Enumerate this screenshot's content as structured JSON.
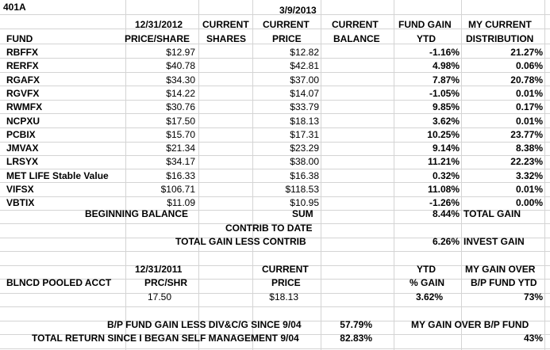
{
  "title": "401A",
  "header": {
    "date1": "12/31/2012",
    "date2": "3/9/2013",
    "current_a": "CURRENT",
    "current_b": "CURRENT",
    "current_c": "CURRENT",
    "fund_gain": "FUND GAIN",
    "my_current": "MY CURRENT",
    "fund": "FUND",
    "price_share": "PRICE/SHARE",
    "shares": "SHARES",
    "price": "PRICE",
    "balance": "BALANCE",
    "ytd": "YTD",
    "distribution": "DISTRIBUTION"
  },
  "rows": [
    {
      "fund": "RBFFX",
      "price_2012": "$12.97",
      "price_now": "$12.82",
      "gain": "-1.16%",
      "dist": "21.27%"
    },
    {
      "fund": "RERFX",
      "price_2012": "$40.78",
      "price_now": "$42.81",
      "gain": "4.98%",
      "dist": "0.06%"
    },
    {
      "fund": "RGAFX",
      "price_2012": "$34.30",
      "price_now": "$37.00",
      "gain": "7.87%",
      "dist": "20.78%"
    },
    {
      "fund": "RGVFX",
      "price_2012": "$14.22",
      "price_now": "$14.07",
      "gain": "-1.05%",
      "dist": "0.01%"
    },
    {
      "fund": "RWMFX",
      "price_2012": "$30.76",
      "price_now": "$33.79",
      "gain": "9.85%",
      "dist": "0.17%"
    },
    {
      "fund": "NCPXU",
      "price_2012": "$17.50",
      "price_now": "$18.13",
      "gain": "3.62%",
      "dist": "0.01%"
    },
    {
      "fund": "PCBIX",
      "price_2012": "$15.70",
      "price_now": "$17.31",
      "gain": "10.25%",
      "dist": "23.77%"
    },
    {
      "fund": "JMVAX",
      "price_2012": "$21.34",
      "price_now": "$23.29",
      "gain": "9.14%",
      "dist": "8.38%"
    },
    {
      "fund": "LRSYX",
      "price_2012": "$34.17",
      "price_now": "$38.00",
      "gain": "11.21%",
      "dist": "22.23%"
    },
    {
      "fund": "MET LIFE Stable Value",
      "price_2012": "$16.33",
      "price_now": "$16.38",
      "gain": "0.32%",
      "dist": "3.32%"
    },
    {
      "fund": "VIFSX",
      "price_2012": "$106.71",
      "price_now": "$118.53",
      "gain": "11.08%",
      "dist": "0.01%"
    },
    {
      "fund": "VBTIX",
      "price_2012": "$11.09",
      "price_now": "$10.95",
      "gain": "-1.26%",
      "dist": "0.00%"
    }
  ],
  "summary": {
    "beginning_balance": "BEGINNING BALANCE",
    "sum": "SUM",
    "total_gain_pct": "8.44%",
    "total_gain_label": "TOTAL GAIN",
    "contrib_to_date": "CONTRIB TO DATE",
    "total_gain_less_contrib": "TOTAL GAIN LESS CONTRIB",
    "invest_gain_pct": "6.26%",
    "invest_gain_label": "INVEST GAIN"
  },
  "pooled": {
    "date": "12/31/2011",
    "current": "CURRENT",
    "ytd": "YTD",
    "my_gain_over": "MY GAIN OVER",
    "acct_label": "BLNCD POOLED ACCT",
    "prc_shr": "PRC/SHR",
    "price": "PRICE",
    "pct_gain": "% GAIN",
    "bp_fund_ytd": "B/P FUND YTD",
    "price_2011": "17.50",
    "price_now": "$18.13",
    "ytd_gain": "3.62%",
    "my_gain": "73%"
  },
  "footer": {
    "bp_label": "B/P FUND GAIN LESS DIV&C/G SINCE 9/04",
    "bp_value": "57.79%",
    "my_gain_over_bp": "MY GAIN OVER  B/P FUND",
    "total_return_label": "TOTAL RETURN SINCE I BEGAN SELF MANAGEMENT 9/04",
    "total_return_value": "82.83%",
    "my_gain_value": "43%"
  }
}
